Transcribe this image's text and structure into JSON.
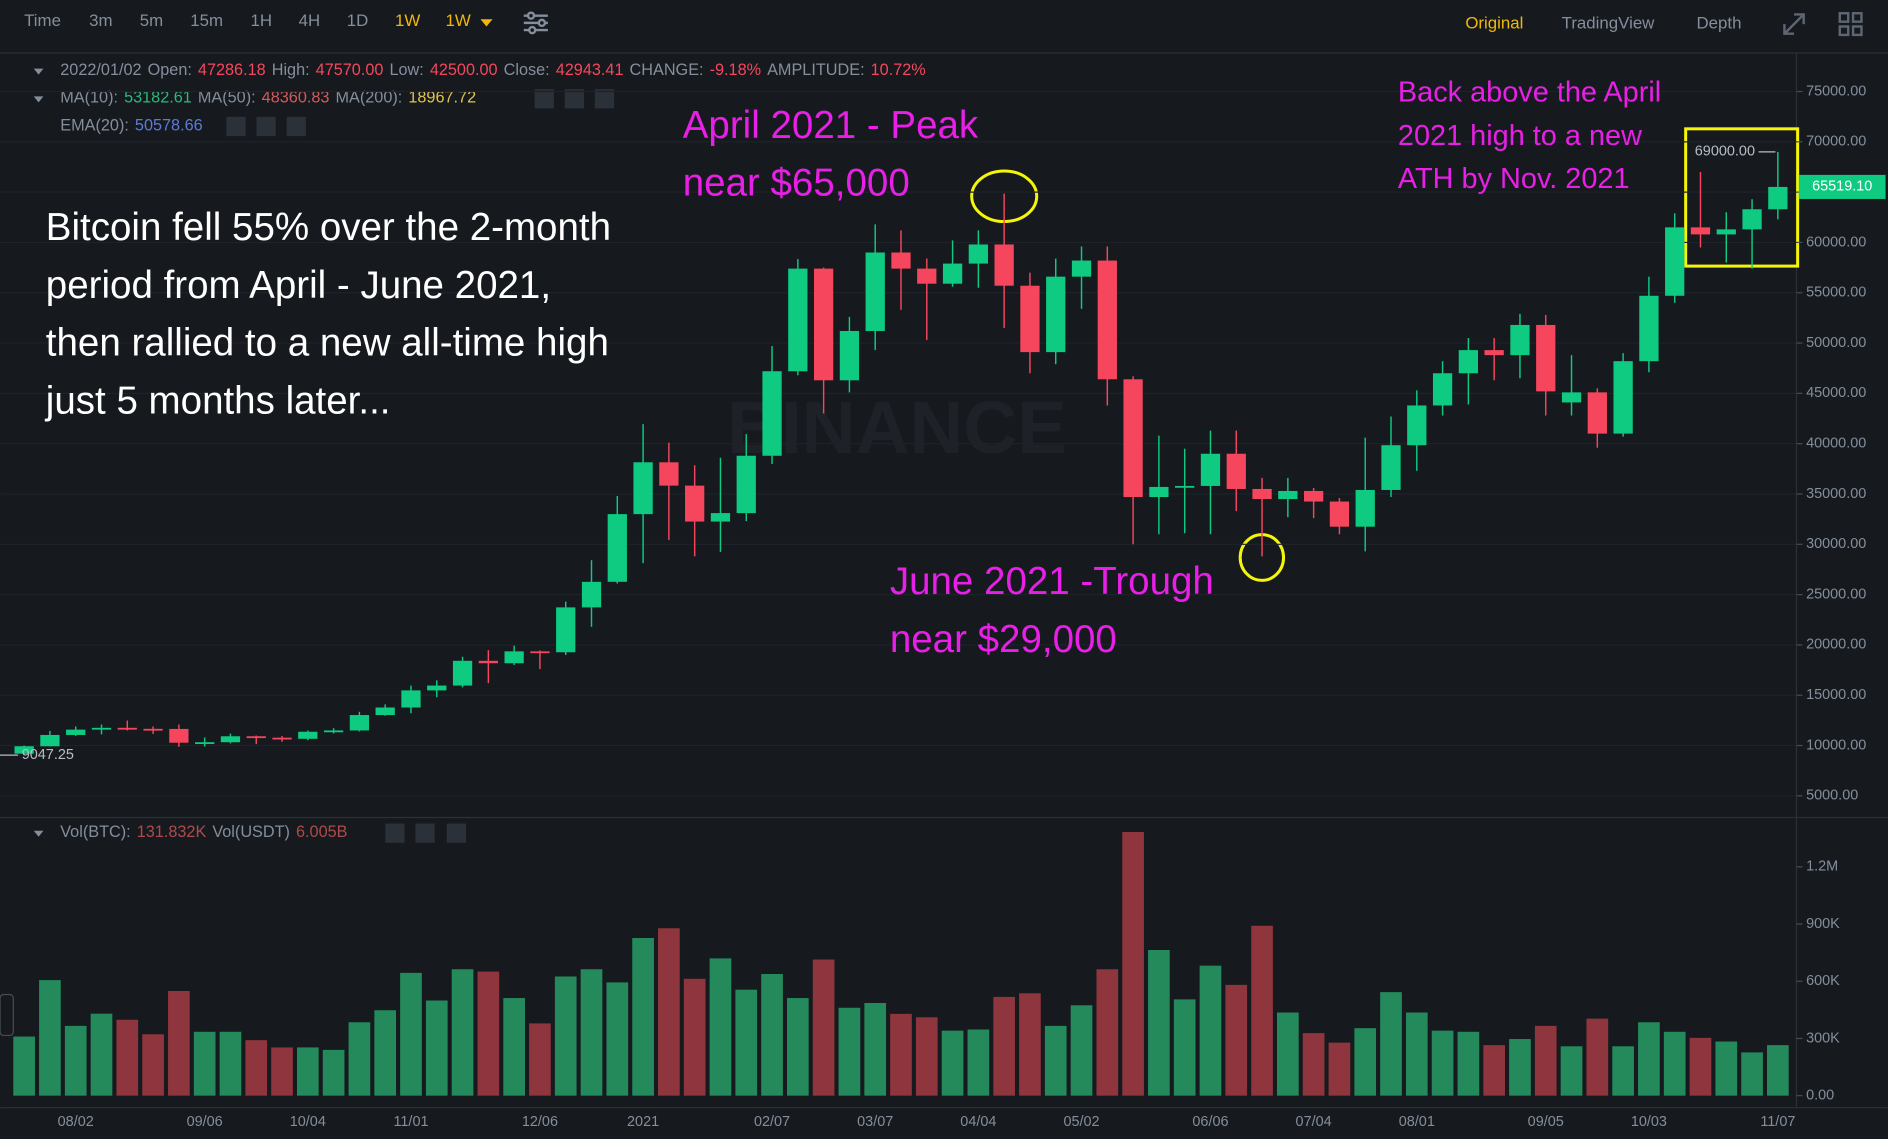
{
  "toolbar": {
    "intervals": [
      {
        "label": "Time",
        "active": false
      },
      {
        "label": "3m",
        "active": false
      },
      {
        "label": "5m",
        "active": false
      },
      {
        "label": "15m",
        "active": false
      },
      {
        "label": "1H",
        "active": false
      },
      {
        "label": "4H",
        "active": false
      },
      {
        "label": "1D",
        "active": false
      },
      {
        "label": "1W",
        "active": true
      },
      {
        "label": "1W",
        "active": true
      }
    ],
    "views": [
      {
        "label": "Original",
        "active": true
      },
      {
        "label": "TradingView",
        "active": false
      },
      {
        "label": "Depth",
        "active": false
      }
    ],
    "active_color": "#f0b90b",
    "color": "#848e9c"
  },
  "chart_data": [
    {
      "type": "candlestick",
      "watermark": "BINANCE",
      "up_color": "#0ecb81",
      "down_color": "#f6465d",
      "legend_rows": [
        [
          {
            "text": "2022/01/02",
            "color": "#848e9c"
          },
          {
            "text": "Open:",
            "color": "#848e9c"
          },
          {
            "text": "47286.18",
            "color": "#f6465d"
          },
          {
            "text": "High:",
            "color": "#848e9c"
          },
          {
            "text": "47570.00",
            "color": "#f6465d"
          },
          {
            "text": "Low:",
            "color": "#848e9c"
          },
          {
            "text": "42500.00",
            "color": "#f6465d"
          },
          {
            "text": "Close:",
            "color": "#848e9c"
          },
          {
            "text": "42943.41",
            "color": "#f6465d"
          },
          {
            "text": "CHANGE:",
            "color": "#848e9c"
          },
          {
            "text": "-9.18%",
            "color": "#f6465d"
          },
          {
            "text": "AMPLITUDE:",
            "color": "#848e9c"
          },
          {
            "text": "10.72%",
            "color": "#f6465d"
          }
        ],
        [
          {
            "text": "MA(10):",
            "color": "#848e9c"
          },
          {
            "text": "53182.61",
            "color": "#2fb67a"
          },
          {
            "text": "MA(50):",
            "color": "#848e9c"
          },
          {
            "text": "48360.83",
            "color": "#d35a5a"
          },
          {
            "text": "MA(200):",
            "color": "#848e9c"
          },
          {
            "text": "18967.72",
            "color": "#e0c34a"
          }
        ],
        [
          {
            "text": "EMA(20):",
            "color": "#848e9c"
          },
          {
            "text": "50578.66",
            "color": "#5a7bd6"
          }
        ]
      ],
      "categories": [
        null,
        null,
        "08/02",
        null,
        null,
        null,
        null,
        "09/06",
        null,
        null,
        null,
        "10/04",
        null,
        null,
        null,
        "11/01",
        null,
        null,
        null,
        null,
        "12/06",
        null,
        null,
        null,
        "2021",
        null,
        null,
        null,
        null,
        "02/07",
        null,
        null,
        null,
        "03/07",
        null,
        null,
        null,
        "04/04",
        null,
        null,
        null,
        "05/02",
        null,
        null,
        null,
        null,
        "06/06",
        null,
        null,
        null,
        "07/04",
        null,
        null,
        null,
        "08/01",
        null,
        null,
        null,
        null,
        "09/05",
        null,
        null,
        null,
        "10/03",
        null,
        null,
        null,
        null,
        "11/07"
      ],
      "open": [
        9187,
        9930,
        11050,
        11580,
        11760,
        11660,
        11650,
        10280,
        10330,
        10920,
        10780,
        10670,
        11370,
        11500,
        13030,
        13780,
        15480,
        15960,
        18420,
        18180,
        19360,
        19270,
        23730,
        26270,
        33000,
        38150,
        35830,
        32260,
        33100,
        38800,
        47200,
        57400,
        46300,
        51200,
        59000,
        57400,
        55900,
        57900,
        59800,
        55700,
        49100,
        56600,
        58200,
        46400,
        34700,
        35700,
        35800,
        39000,
        35500,
        34500,
        35300,
        34250,
        31750,
        35400,
        39850,
        43800,
        47000,
        49300,
        48800,
        51800,
        44100,
        45100,
        41000,
        48200,
        54700,
        61500,
        60800,
        61300,
        63300
      ],
      "high": [
        10000,
        11450,
        11900,
        12080,
        12480,
        11900,
        12090,
        10800,
        11180,
        10990,
        10950,
        11490,
        11720,
        13350,
        14090,
        15960,
        16480,
        18820,
        19480,
        19920,
        19450,
        24300,
        28420,
        34800,
        41950,
        40100,
        37850,
        38600,
        40950,
        49700,
        58350,
        57500,
        52600,
        61800,
        61200,
        58400,
        60200,
        61200,
        64854,
        57000,
        58400,
        59600,
        59600,
        46700,
        40800,
        39500,
        41300,
        41300,
        36600,
        36600,
        35600,
        34600,
        40600,
        42700,
        45300,
        48200,
        50500,
        50500,
        52900,
        52800,
        48800,
        45500,
        49000,
        56600,
        62900,
        67000,
        63000,
        64300,
        69000
      ],
      "low": [
        9047.25,
        9910,
        10960,
        11110,
        11500,
        11150,
        9875,
        9900,
        10210,
        10140,
        10370,
        10530,
        11200,
        11400,
        12960,
        13200,
        14800,
        15780,
        16200,
        18000,
        17600,
        19000,
        21800,
        26100,
        28130,
        30420,
        28800,
        29240,
        32300,
        37990,
        46800,
        43000,
        45100,
        49300,
        53300,
        50300,
        55600,
        55500,
        51500,
        47000,
        47900,
        53400,
        43800,
        30000,
        31000,
        31100,
        31000,
        33300,
        28800,
        32700,
        32600,
        31000,
        29300,
        34700,
        37300,
        42800,
        43900,
        46300,
        46500,
        42800,
        42800,
        39600,
        40700,
        47100,
        54000,
        59500,
        58000,
        57400,
        62300
      ],
      "close": [
        9930,
        11050,
        11580,
        11760,
        11660,
        11650,
        10280,
        10330,
        10920,
        10780,
        10670,
        11370,
        11500,
        13030,
        13780,
        15480,
        15960,
        18420,
        18180,
        19360,
        19270,
        23730,
        26270,
        33000,
        38150,
        35830,
        32260,
        33100,
        38800,
        47200,
        57400,
        46300,
        51200,
        59000,
        57400,
        55900,
        57900,
        59800,
        55700,
        49100,
        56600,
        58200,
        46400,
        34700,
        35700,
        35800,
        39000,
        35500,
        34500,
        35300,
        34250,
        31750,
        35400,
        39850,
        43800,
        47000,
        49300,
        48800,
        51800,
        45200,
        45100,
        41000,
        48200,
        54700,
        61500,
        60800,
        61300,
        63300,
        65519.1
      ],
      "max_label": "69000.00",
      "last_price_label": "65519.10",
      "ylim": [
        3000,
        78700
      ],
      "yticks": [
        {
          "value": 5000,
          "label": "5000.00"
        },
        {
          "value": 10000,
          "label": "10000.00"
        },
        {
          "value": 15000,
          "label": "15000.00"
        },
        {
          "value": 20000,
          "label": "20000.00"
        },
        {
          "value": 25000,
          "label": "25000.00"
        },
        {
          "value": 30000,
          "label": "30000.00"
        },
        {
          "value": 35000,
          "label": "35000.00"
        },
        {
          "value": 40000,
          "label": "40000.00"
        },
        {
          "value": 45000,
          "label": "45000.00"
        },
        {
          "value": 50000,
          "label": "50000.00"
        },
        {
          "value": 55000,
          "label": "55000.00"
        },
        {
          "value": 60000,
          "label": "60000.00"
        },
        {
          "value": 65000,
          "label": "65000.00"
        },
        {
          "value": 70000,
          "label": "70000.00"
        },
        {
          "value": 75000,
          "label": "75000.00"
        }
      ],
      "grid": true,
      "annotations": [
        {
          "lines": [
            "Bitcoin fell 55% over the 2-month",
            "period from April - June 2021,",
            "then rallied to a new all-time high",
            "just 5 months later..."
          ],
          "color": "#ffffff"
        },
        {
          "lines": [
            "April 2021 - Peak",
            "near $65,000"
          ],
          "color": "#e81fe6"
        },
        {
          "lines": [
            "June 2021 -Trough",
            "near $29,000"
          ],
          "color": "#e81fe6"
        },
        {
          "lines": [
            "Back above the April",
            "2021 high to a new",
            "ATH by Nov. 2021"
          ],
          "color": "#e81fe6"
        }
      ]
    },
    {
      "type": "bar",
      "up_color": "#248a5c",
      "down_color": "#8f353d",
      "legend_rows": [
        [
          {
            "text": "Vol(BTC):",
            "color": "#848e9c"
          },
          {
            "text": "131.832K",
            "color": "#b04a4a"
          },
          {
            "text": "Vol(USDT)",
            "color": "#848e9c"
          },
          {
            "text": "6.005B",
            "color": "#b04a4a"
          }
        ]
      ],
      "values": [
        310000,
        606000,
        366000,
        430000,
        398000,
        322000,
        549000,
        335000,
        335000,
        291000,
        253000,
        253000,
        240000,
        385000,
        448000,
        644000,
        499000,
        663000,
        651000,
        512000,
        379000,
        625000,
        663000,
        594000,
        827000,
        878000,
        613000,
        720000,
        556000,
        638000,
        512000,
        714000,
        461000,
        486000,
        429000,
        411000,
        341000,
        347000,
        518000,
        537000,
        366000,
        474000,
        663000,
        1383000,
        764000,
        505000,
        682000,
        581000,
        891000,
        436000,
        328000,
        278000,
        354000,
        543000,
        436000,
        341000,
        335000,
        265000,
        297000,
        366000,
        259000,
        404000,
        259000,
        385000,
        335000,
        303000,
        284000,
        227000,
        265000
      ],
      "ylim": [
        0,
        1450000
      ],
      "yticks": [
        {
          "value": 0,
          "label": "0.00"
        },
        {
          "value": 300000,
          "label": "300K"
        },
        {
          "value": 600000,
          "label": "600K"
        },
        {
          "value": 900000,
          "label": "900K"
        },
        {
          "value": 1200000,
          "label": "1.2M"
        }
      ]
    }
  ]
}
